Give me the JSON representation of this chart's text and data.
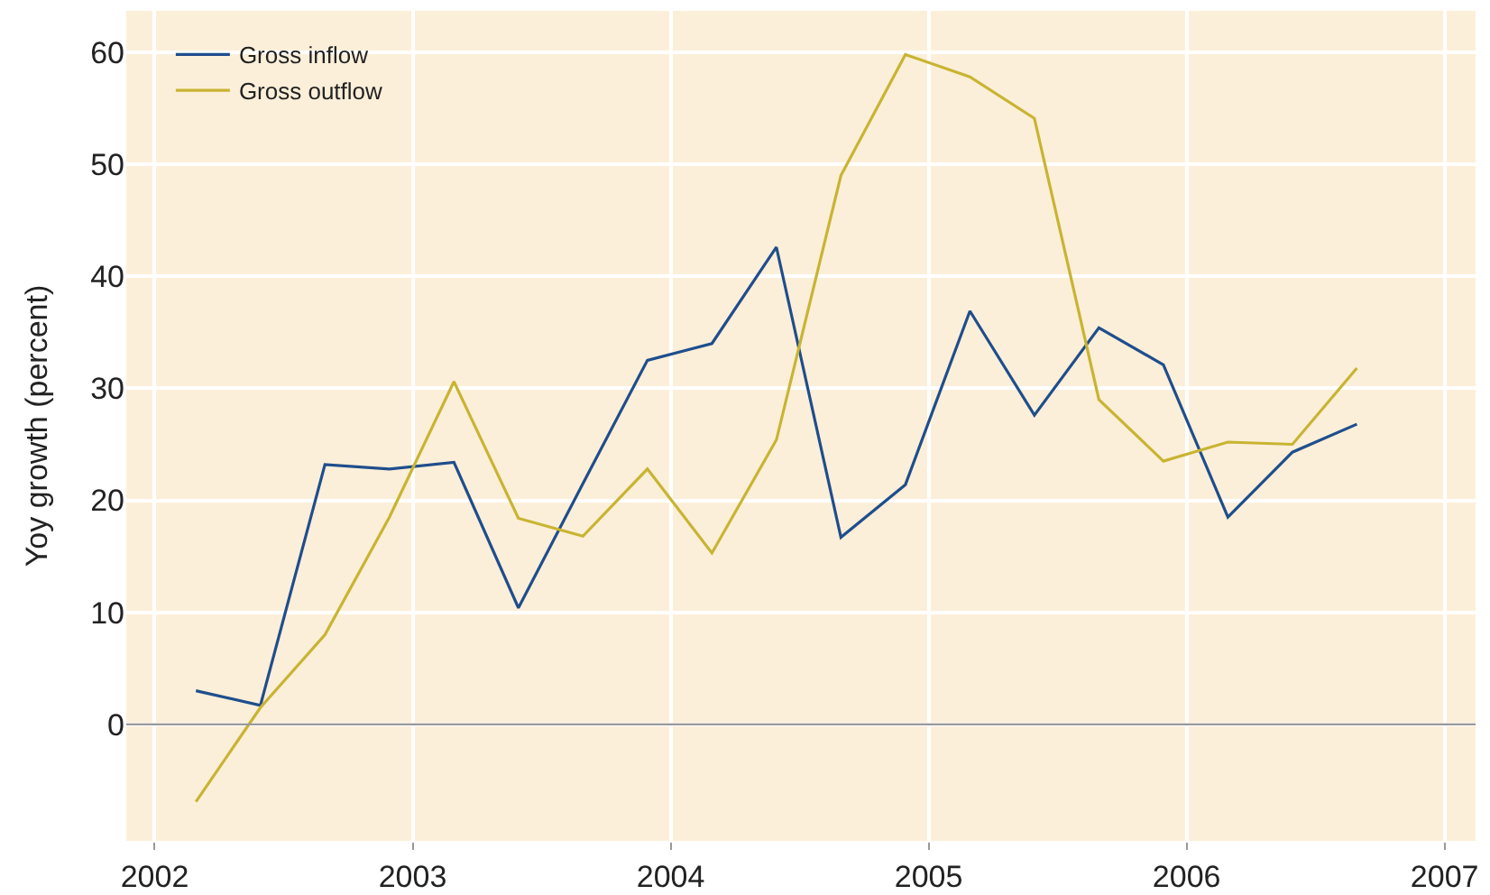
{
  "chart_data": {
    "type": "line",
    "ylabel": "Yoy growth (percent)",
    "x": [
      2002.16,
      2002.41,
      2002.66,
      2002.91,
      2003.16,
      2003.41,
      2003.66,
      2003.91,
      2004.16,
      2004.41,
      2004.66,
      2004.91,
      2005.16,
      2005.41,
      2005.66,
      2005.91,
      2006.16,
      2006.41,
      2006.66
    ],
    "series": [
      {
        "name": "Gross inflow",
        "color": "#1f4e8c",
        "values": [
          3,
          1.7,
          23.2,
          22.8,
          23.4,
          10.4,
          21.5,
          32.5,
          34,
          42.6,
          16.7,
          21.4,
          36.9,
          27.6,
          35.4,
          32.1,
          18.5,
          24.3,
          26.8
        ]
      },
      {
        "name": "Gross outflow",
        "color": "#c8b432",
        "values": [
          -6.9,
          1.5,
          8,
          18.5,
          30.6,
          18.4,
          16.8,
          22.8,
          15.3,
          25.4,
          49,
          59.8,
          57.8,
          54.1,
          29,
          23.5,
          25.2,
          25,
          31.8
        ]
      }
    ],
    "xlim": [
      2001.89,
      2007.12
    ],
    "xticks": [
      2002,
      2003,
      2004,
      2005,
      2006,
      2007
    ],
    "ylim": [
      -10.4,
      63.7
    ],
    "yticks": [
      0,
      10,
      20,
      30,
      40,
      50,
      60
    ],
    "ref_lines": [
      {
        "axis": "y",
        "value": 0,
        "color": "#999999"
      }
    ],
    "grid": true,
    "legend": "top left",
    "marker": "none",
    "line_style": "solid"
  }
}
